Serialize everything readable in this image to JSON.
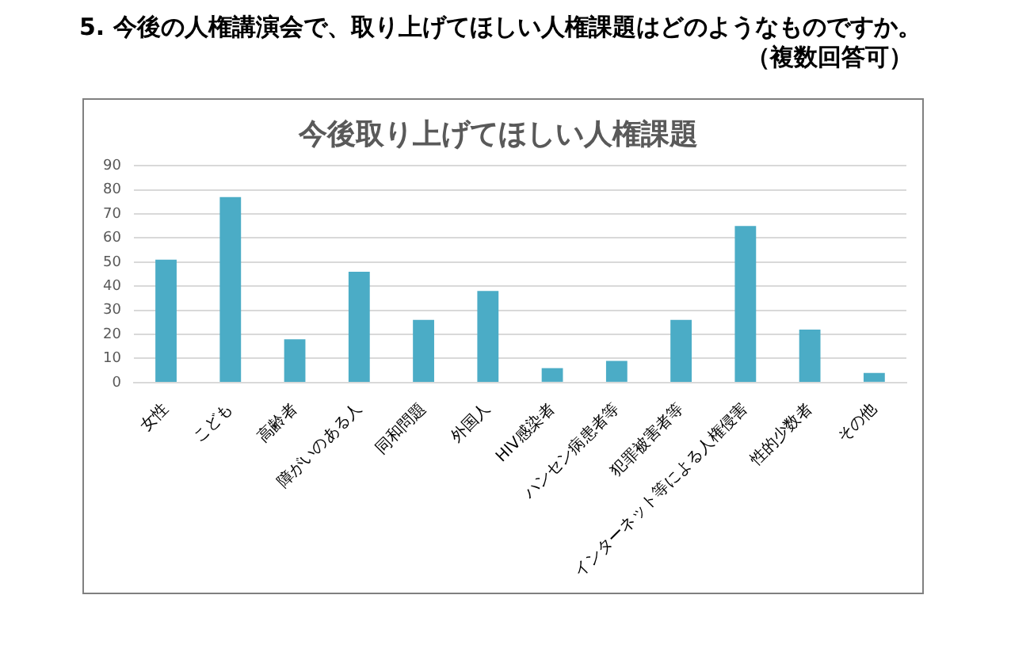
{
  "chart_data": {
    "type": "bar",
    "title": "今後取り上げてほしい人権課題",
    "annotations": [
      "5. 今後の人権講演会で、取り上げてほしい人権課題はどのようなものですか。",
      "（複数回答可）"
    ],
    "categories": [
      "女性",
      "こども",
      "高齢者",
      "障がいのある人",
      "同和問題",
      "外国人",
      "HIV感染者",
      "ハンセン病患者等",
      "犯罪被害者等",
      "インターネット等による人権侵害",
      "性的少数者",
      "その他"
    ],
    "values": [
      51,
      77,
      18,
      46,
      26,
      38,
      6,
      9,
      26,
      65,
      22,
      4
    ],
    "color": "#4bacc6",
    "ylim": [
      0,
      90
    ],
    "yticks": [
      0,
      10,
      20,
      30,
      40,
      50,
      60,
      70,
      80,
      90
    ],
    "grid": "y"
  }
}
